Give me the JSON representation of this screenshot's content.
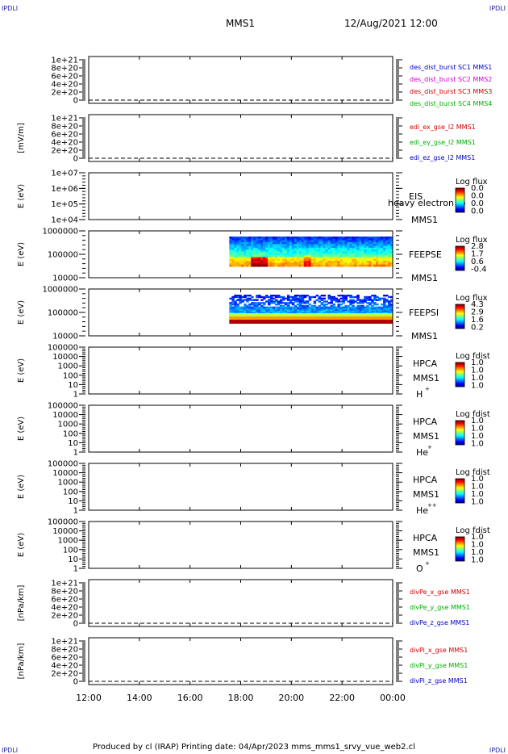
{
  "corners": {
    "tl": "IPDLI",
    "tr": "IPDLI",
    "bl": "IPDLI",
    "br": "IPDLI"
  },
  "header": {
    "spacecraft": "MMS1",
    "datetime": "12/Aug/2021 12:00"
  },
  "footer": "Produced by cl (IRAP)   Printing date: 04/Apr/2023   mms_mms1_srvy_vue_web2.cl",
  "chart_data": {
    "type": "line",
    "x_ticks": [
      "12:00",
      "14:00",
      "16:00",
      "18:00",
      "20:00",
      "22:00",
      "00:00"
    ],
    "x_range_hours": [
      12,
      24
    ],
    "panels": [
      {
        "id": "des",
        "ylabel": "",
        "ticks": [
          "1e+21",
          "8e+20",
          "6e+20",
          "4e+20",
          "2e+20",
          "0"
        ],
        "legend": [
          {
            "text": "des_dist_burst SC1 MMS1",
            "color": "#0000c8"
          },
          {
            "text": "des_dist_burst SC2 MMS2",
            "color": "#d000d0"
          },
          {
            "text": "des_dist_burst SC3 MMS3",
            "color": "#d00000"
          },
          {
            "text": "des_dist_burst SC4 MMS4",
            "color": "#00b000"
          }
        ]
      },
      {
        "id": "edi",
        "ylabel": "[mV/m]",
        "ticks": [
          "1e+21",
          "8e+20",
          "6e+20",
          "4e+20",
          "2e+20",
          "0"
        ],
        "legend": [
          {
            "text": "edi_ex_gse_l2 MMS1",
            "color": "#d00000"
          },
          {
            "text": "edi_ey_gse_l2 MMS1",
            "color": "#00b000"
          },
          {
            "text": "edi_ez_gse_l2 MMS1",
            "color": "#0000c8"
          }
        ]
      },
      {
        "id": "eis",
        "ylabel": "E (eV)",
        "ticks": [
          "1e+07",
          "1e+06",
          "1e+05",
          "1e+04"
        ],
        "labels": [
          "EIS",
          "MMS1"
        ],
        "overlay": "heavy electron to",
        "colorbar": {
          "title": "Log flux",
          "ticks": [
            "0.0",
            "0.0",
            "0.0",
            "0.0"
          ]
        }
      },
      {
        "id": "feepse",
        "ylabel": "E (eV)",
        "ticks": [
          "1000000",
          "100000",
          "10000"
        ],
        "labels": [
          "FEEPSE",
          "MMS1"
        ],
        "data_start_hour": 17.55,
        "colorbar": {
          "title": "Log flux",
          "ticks": [
            "2.8",
            "1.7",
            "0.6",
            "-0.4"
          ]
        }
      },
      {
        "id": "feepsi",
        "ylabel": "E (eV)",
        "ticks": [
          "1000000",
          "100000",
          "10000"
        ],
        "labels": [
          "FEEPSI",
          "MMS1"
        ],
        "data_start_hour": 17.55,
        "colorbar": {
          "title": "Log flux",
          "ticks": [
            "4.3",
            "2.9",
            "1.6",
            "0.2"
          ]
        }
      },
      {
        "id": "hpca_h",
        "ylabel": "E (eV)",
        "ticks": [
          "100000",
          "10000",
          "1000",
          "100",
          "10",
          "1"
        ],
        "labels": [
          "HPCA",
          "MMS1"
        ],
        "ion": "H",
        "charge": "+",
        "colorbar": {
          "title": "Log fdist",
          "ticks": [
            "1.0",
            "1.0",
            "1.0",
            "1.0"
          ]
        }
      },
      {
        "id": "hpca_he1",
        "ylabel": "E (eV)",
        "ticks": [
          "100000",
          "10000",
          "1000",
          "100",
          "10",
          "1"
        ],
        "labels": [
          "HPCA",
          "MMS1"
        ],
        "ion": "He",
        "charge": "+",
        "colorbar": {
          "title": "Log fdist",
          "ticks": [
            "1.0",
            "1.0",
            "1.0",
            "1.0"
          ]
        }
      },
      {
        "id": "hpca_he2",
        "ylabel": "E (eV)",
        "ticks": [
          "100000",
          "10000",
          "1000",
          "100",
          "10",
          "1"
        ],
        "labels": [
          "HPCA",
          "MMS1"
        ],
        "ion": "He",
        "charge": "++",
        "colorbar": {
          "title": "Log fdist",
          "ticks": [
            "1.0",
            "1.0",
            "1.0",
            "1.0"
          ]
        }
      },
      {
        "id": "hpca_o",
        "ylabel": "E (eV)",
        "ticks": [
          "100000",
          "10000",
          "1000",
          "100",
          "10",
          "1"
        ],
        "labels": [
          "HPCA",
          "MMS1"
        ],
        "ion": "O",
        "charge": "+",
        "colorbar": {
          "title": "Log fdist",
          "ticks": [
            "1.0",
            "1.0",
            "1.0",
            "1.0"
          ]
        }
      },
      {
        "id": "divpe",
        "ylabel": "[nPa/km]",
        "ticks": [
          "1e+21",
          "8e+20",
          "6e+20",
          "4e+20",
          "2e+20",
          "0"
        ],
        "legend": [
          {
            "text": "divPe_x_gse MMS1",
            "color": "#d00000"
          },
          {
            "text": "divPe_y_gse MMS1",
            "color": "#00b000"
          },
          {
            "text": "divPe_z_gse MMS1",
            "color": "#0000c8"
          }
        ]
      },
      {
        "id": "divpi",
        "ylabel": "[nPa/km]",
        "ticks": [
          "1e+21",
          "8e+20",
          "6e+20",
          "4e+20",
          "2e+20",
          "0"
        ],
        "legend": [
          {
            "text": "divPi_x_gse MMS1",
            "color": "#d00000"
          },
          {
            "text": "divPi_y_gse MMS1",
            "color": "#00b000"
          },
          {
            "text": "divPi_z_gse MMS1",
            "color": "#0000c8"
          }
        ]
      }
    ]
  }
}
